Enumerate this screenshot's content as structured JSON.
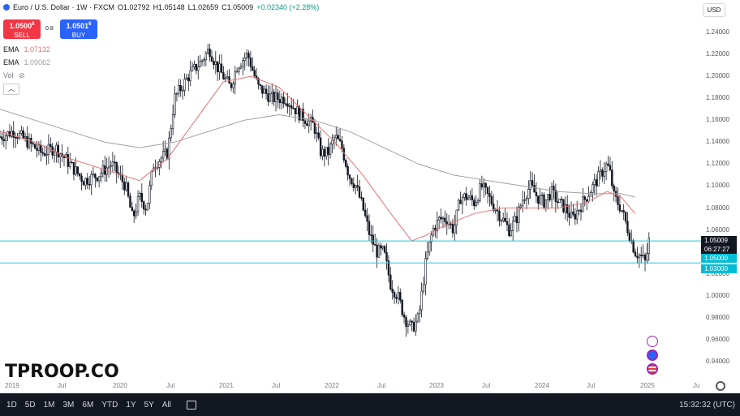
{
  "header": {
    "symbol_title": "Euro / U.S. Dollar · 1W · FXCM",
    "open": "O1.02792",
    "high": "H1.05148",
    "low": "L1.02659",
    "close": "C1.05009",
    "change": "+0.02340 (+2.28%)"
  },
  "trade": {
    "sell_price": "1.0500",
    "sell_sup": "8",
    "sell_label": "SELL",
    "spread": "0.8",
    "buy_price": "1.0501",
    "buy_sup": "6",
    "buy_label": "BUY"
  },
  "indicators": {
    "ema1_label": "EMA",
    "ema1_value": "1.07132",
    "ema2_label": "EMA",
    "ema2_value": "1.09062",
    "vol_label": "Vol"
  },
  "currency": "USD",
  "price_scale": {
    "labels": [
      "1.24000",
      "1.22000",
      "1.20000",
      "1.18000",
      "1.16000",
      "1.14000",
      "1.12000",
      "1.10000",
      "1.08000",
      "1.06000",
      "1.02000",
      "1.00000",
      "0.98000",
      "0.96000",
      "0.94000"
    ],
    "last_price": "1.05009",
    "countdown": "06:27:27",
    "line1_price": "1.05000",
    "line2_price": "1.03000"
  },
  "time_axis": {
    "labels": [
      "2019",
      "Jul",
      "2020",
      "Jul",
      "2021",
      "Jul",
      "2022",
      "Jul",
      "2023",
      "Jul",
      "2024",
      "Jul",
      "2025",
      "Ju"
    ]
  },
  "timeframes": [
    "1D",
    "5D",
    "1M",
    "3M",
    "6M",
    "YTD",
    "1Y",
    "5Y",
    "All"
  ],
  "clock": "15:32:32 (UTC)",
  "watermark": "TPROOP.CO",
  "colors": {
    "up": "#131722",
    "down": "#131722",
    "ema_fast": "#e57373",
    "ema_slow": "#9e9e9e",
    "level_line": "#26c6da",
    "last_price_tag": "#131722",
    "level_tag": "#00bcd4"
  },
  "chart_data": {
    "type": "candlestick",
    "y_range": [
      0.935,
      1.25
    ],
    "x_range": [
      "2018-09",
      "2025-06"
    ],
    "horizontal_levels": [
      1.05,
      1.03
    ],
    "series": [
      {
        "name": "EMA",
        "values_ref": "ema_fast"
      },
      {
        "name": "EMA",
        "values_ref": "ema_slow"
      }
    ],
    "close_path": [
      [
        0.0,
        1.145
      ],
      [
        0.02,
        1.15
      ],
      [
        0.04,
        1.14
      ],
      [
        0.06,
        1.13
      ],
      [
        0.08,
        1.135
      ],
      [
        0.1,
        1.12
      ],
      [
        0.12,
        1.105
      ],
      [
        0.14,
        1.11
      ],
      [
        0.16,
        1.12
      ],
      [
        0.18,
        1.1
      ],
      [
        0.19,
        1.07
      ],
      [
        0.2,
        1.09
      ],
      [
        0.21,
        1.08
      ],
      [
        0.22,
        1.12
      ],
      [
        0.24,
        1.13
      ],
      [
        0.25,
        1.18
      ],
      [
        0.27,
        1.2
      ],
      [
        0.29,
        1.215
      ],
      [
        0.3,
        1.225
      ],
      [
        0.31,
        1.21
      ],
      [
        0.32,
        1.2
      ],
      [
        0.33,
        1.19
      ],
      [
        0.34,
        1.21
      ],
      [
        0.355,
        1.22
      ],
      [
        0.37,
        1.19
      ],
      [
        0.39,
        1.18
      ],
      [
        0.41,
        1.18
      ],
      [
        0.43,
        1.165
      ],
      [
        0.45,
        1.155
      ],
      [
        0.46,
        1.13
      ],
      [
        0.47,
        1.13
      ],
      [
        0.48,
        1.145
      ],
      [
        0.49,
        1.135
      ],
      [
        0.5,
        1.11
      ],
      [
        0.51,
        1.1
      ],
      [
        0.52,
        1.08
      ],
      [
        0.53,
        1.055
      ],
      [
        0.54,
        1.04
      ],
      [
        0.55,
        1.04
      ],
      [
        0.56,
        1.01
      ],
      [
        0.57,
        1.0
      ],
      [
        0.58,
        0.98
      ],
      [
        0.59,
        0.97
      ],
      [
        0.6,
        0.98
      ],
      [
        0.61,
        1.03
      ],
      [
        0.62,
        1.06
      ],
      [
        0.63,
        1.07
      ],
      [
        0.64,
        1.07
      ],
      [
        0.65,
        1.06
      ],
      [
        0.66,
        1.09
      ],
      [
        0.67,
        1.09
      ],
      [
        0.68,
        1.085
      ],
      [
        0.69,
        1.1
      ],
      [
        0.7,
        1.09
      ],
      [
        0.71,
        1.08
      ],
      [
        0.72,
        1.07
      ],
      [
        0.73,
        1.06
      ],
      [
        0.74,
        1.07
      ],
      [
        0.75,
        1.09
      ],
      [
        0.76,
        1.1
      ],
      [
        0.77,
        1.09
      ],
      [
        0.78,
        1.085
      ],
      [
        0.79,
        1.095
      ],
      [
        0.8,
        1.085
      ],
      [
        0.81,
        1.08
      ],
      [
        0.82,
        1.07
      ],
      [
        0.83,
        1.08
      ],
      [
        0.84,
        1.09
      ],
      [
        0.85,
        1.1
      ],
      [
        0.86,
        1.11
      ],
      [
        0.87,
        1.12
      ],
      [
        0.875,
        1.11
      ],
      [
        0.88,
        1.09
      ],
      [
        0.89,
        1.08
      ],
      [
        0.9,
        1.06
      ],
      [
        0.91,
        1.04
      ],
      [
        0.92,
        1.035
      ],
      [
        0.925,
        1.03
      ],
      [
        0.93,
        1.05
      ]
    ],
    "ema_fast": [
      [
        0.0,
        1.15
      ],
      [
        0.05,
        1.14
      ],
      [
        0.1,
        1.125
      ],
      [
        0.15,
        1.115
      ],
      [
        0.2,
        1.105
      ],
      [
        0.24,
        1.125
      ],
      [
        0.28,
        1.16
      ],
      [
        0.32,
        1.195
      ],
      [
        0.36,
        1.2
      ],
      [
        0.4,
        1.19
      ],
      [
        0.44,
        1.165
      ],
      [
        0.48,
        1.14
      ],
      [
        0.52,
        1.11
      ],
      [
        0.56,
        1.075
      ],
      [
        0.59,
        1.05
      ],
      [
        0.61,
        1.055
      ],
      [
        0.64,
        1.065
      ],
      [
        0.68,
        1.075
      ],
      [
        0.72,
        1.08
      ],
      [
        0.76,
        1.08
      ],
      [
        0.8,
        1.08
      ],
      [
        0.84,
        1.085
      ],
      [
        0.87,
        1.095
      ],
      [
        0.89,
        1.09
      ],
      [
        0.91,
        1.075
      ]
    ],
    "ema_slow": [
      [
        0.0,
        1.17
      ],
      [
        0.05,
        1.16
      ],
      [
        0.1,
        1.15
      ],
      [
        0.15,
        1.14
      ],
      [
        0.2,
        1.135
      ],
      [
        0.25,
        1.14
      ],
      [
        0.3,
        1.15
      ],
      [
        0.35,
        1.16
      ],
      [
        0.4,
        1.165
      ],
      [
        0.45,
        1.16
      ],
      [
        0.5,
        1.15
      ],
      [
        0.55,
        1.135
      ],
      [
        0.6,
        1.12
      ],
      [
        0.65,
        1.11
      ],
      [
        0.7,
        1.105
      ],
      [
        0.75,
        1.1
      ],
      [
        0.8,
        1.095
      ],
      [
        0.85,
        1.093
      ],
      [
        0.89,
        1.093
      ],
      [
        0.91,
        1.09
      ]
    ]
  }
}
